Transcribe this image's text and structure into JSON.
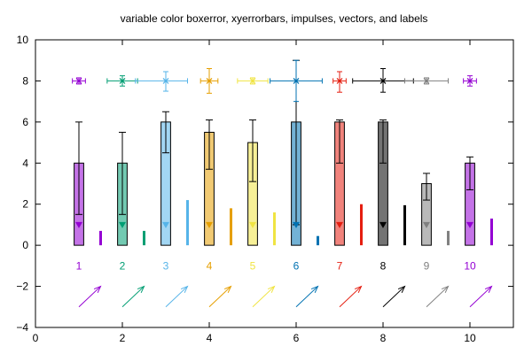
{
  "chart_data": {
    "type": "bar",
    "title": "variable color boxerror, xyerrorbars, impulses, vectors, and labels",
    "xlabel": "",
    "ylabel": "",
    "xlim": [
      0,
      11
    ],
    "ylim": [
      -4,
      10
    ],
    "x_ticks": [
      "0",
      "2",
      "4",
      "6",
      "8",
      "10"
    ],
    "x_tick_values": [
      0,
      2,
      4,
      6,
      8,
      10
    ],
    "y_ticks": [
      "−4",
      "−2",
      "0",
      "2",
      "4",
      "6",
      "8",
      "10"
    ],
    "y_tick_values": [
      -4,
      -2,
      0,
      2,
      4,
      6,
      8,
      10
    ],
    "grid": false,
    "legend": "none",
    "colors": [
      "#9400d3",
      "#009e73",
      "#56b4e9",
      "#e69f00",
      "#f0e442",
      "#0072b2",
      "#e51e10",
      "#000000",
      "#808080",
      "#9400d3"
    ],
    "boxerror": {
      "x": [
        1,
        2,
        3,
        4,
        5,
        6,
        7,
        8,
        9,
        10
      ],
      "values": [
        4.0,
        4.0,
        6.0,
        5.5,
        5.0,
        6.0,
        6.0,
        6.0,
        3.0,
        4.0
      ],
      "err_low": [
        1.5,
        1.5,
        4.5,
        3.7,
        3.1,
        1.0,
        4.0,
        4.0,
        2.2,
        2.7
      ],
      "err_high": [
        6.0,
        5.5,
        6.5,
        6.1,
        6.1,
        9.0,
        6.1,
        6.1,
        3.5,
        4.3
      ],
      "marker_y": [
        1,
        1,
        1,
        1,
        1,
        1,
        1,
        1,
        1,
        1
      ]
    },
    "xyerrorbars": {
      "x": [
        1,
        2,
        3,
        4,
        5,
        6,
        7,
        8,
        9,
        10
      ],
      "y": [
        8,
        8,
        8,
        8,
        8,
        8,
        8,
        8,
        8,
        8
      ],
      "x_low": [
        0.85,
        1.65,
        2.3,
        3.8,
        4.65,
        5.4,
        6.85,
        7.3,
        8.5,
        9.85
      ],
      "x_high": [
        1.15,
        2.35,
        3.5,
        4.2,
        5.35,
        6.6,
        7.15,
        8.7,
        9.5,
        10.15
      ],
      "y_low": [
        7.85,
        7.75,
        7.5,
        7.4,
        7.85,
        7.0,
        7.45,
        7.45,
        7.85,
        7.75
      ],
      "y_high": [
        8.15,
        8.25,
        8.45,
        8.6,
        8.15,
        9.0,
        8.45,
        8.6,
        8.15,
        8.25
      ]
    },
    "impulses": {
      "x": [
        1.5,
        2.5,
        3.5,
        4.5,
        5.5,
        6.5,
        7.5,
        8.5,
        9.5,
        10.5
      ],
      "values": [
        0.7,
        0.7,
        2.2,
        1.8,
        1.6,
        0.45,
        2.0,
        1.95,
        0.7,
        1.3
      ]
    },
    "labels": {
      "x": [
        1,
        2,
        3,
        4,
        5,
        6,
        7,
        8,
        9,
        10
      ],
      "y": [
        -1,
        -1,
        -1,
        -1,
        -1,
        -1,
        -1,
        -1,
        -1,
        -1
      ],
      "text": [
        "1",
        "2",
        "3",
        "4",
        "5",
        "6",
        "7",
        "8",
        "9",
        "10"
      ]
    },
    "vectors": {
      "x": [
        1,
        2,
        3,
        4,
        5,
        6,
        7,
        8,
        9,
        10
      ],
      "y": [
        -3,
        -3,
        -3,
        -3,
        -3,
        -3,
        -3,
        -3,
        -3,
        -3
      ],
      "dx": [
        0.5,
        0.5,
        0.5,
        0.5,
        0.5,
        0.5,
        0.5,
        0.5,
        0.5,
        0.5
      ],
      "dy": [
        1,
        1,
        1,
        1,
        1,
        1,
        1,
        1,
        1,
        1
      ]
    }
  }
}
